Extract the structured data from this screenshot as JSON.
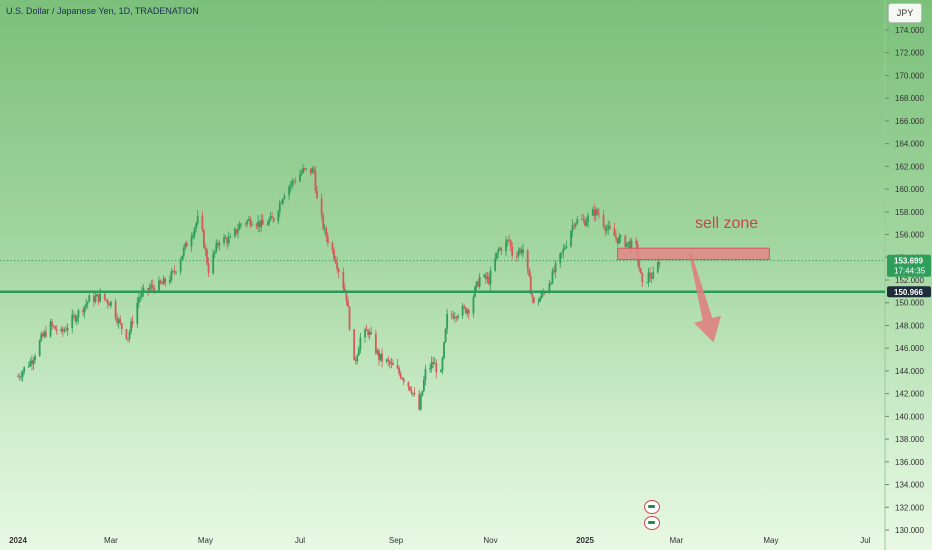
{
  "header": {
    "title": "U.S. Dollar / Japanese Yen, 1D, TRADENATION",
    "currency": "JPY"
  },
  "annotation": {
    "sell_zone_label": "sell zone"
  },
  "price_labels": {
    "current_price": "153.699",
    "countdown": "17:44:35",
    "support_price": "150.966"
  },
  "colors": {
    "up": "#2f9e5b",
    "down": "#d45a5a",
    "support_line": "#2a9a5c",
    "zone_fill": "#e38787",
    "zone_border": "#d45a5a",
    "arrow": "#e07b7b",
    "tag_green": "#2f9e5b",
    "tag_dark": "#1f2d3a"
  },
  "chart_data": {
    "type": "candlestick",
    "ylim": [
      130,
      174
    ],
    "y_ticks": [
      "174.000",
      "172.000",
      "170.000",
      "168.000",
      "166.000",
      "164.000",
      "162.000",
      "160.000",
      "158.000",
      "156.000",
      "154.000",
      "152.000",
      "150.000",
      "148.000",
      "146.000",
      "144.000",
      "142.000",
      "140.000",
      "138.000",
      "136.000",
      "134.000",
      "132.000",
      "130.000"
    ],
    "x_ticks": [
      "2024",
      "Mar",
      "May",
      "Jul",
      "Sep",
      "Nov",
      "2025",
      "Mar",
      "May",
      "Jul"
    ],
    "x_tick_dates": [
      "2024-01-01",
      "2024-03-01",
      "2024-05-01",
      "2024-07-01",
      "2024-09-01",
      "2024-11-01",
      "2025-01-01",
      "2025-03-01",
      "2025-05-01",
      "2025-07-01"
    ],
    "support_level": 150.966,
    "current_price": 153.699,
    "sell_zone": {
      "from": "2025-01-22",
      "to": "2025-04-30",
      "low": 153.8,
      "high": 154.8
    },
    "projection_arrow": {
      "start_date": "2025-03-10",
      "start_price": 154.3,
      "end_date": "2025-03-25",
      "end_price": 146.5
    },
    "price_path": [
      [
        "2024-01-01",
        143.5
      ],
      [
        "2024-01-05",
        144.2
      ],
      [
        "2024-01-10",
        145.0
      ],
      [
        "2024-01-16",
        146.8
      ],
      [
        "2024-01-22",
        148.0
      ],
      [
        "2024-01-29",
        147.3
      ],
      [
        "2024-02-05",
        148.5
      ],
      [
        "2024-02-12",
        149.6
      ],
      [
        "2024-02-16",
        150.3
      ],
      [
        "2024-02-23",
        150.5
      ],
      [
        "2024-03-01",
        150.0
      ],
      [
        "2024-03-07",
        148.0
      ],
      [
        "2024-03-12",
        147.0
      ],
      [
        "2024-03-19",
        150.5
      ],
      [
        "2024-03-26",
        151.3
      ],
      [
        "2024-04-03",
        151.6
      ],
      [
        "2024-04-10",
        152.5
      ],
      [
        "2024-04-17",
        154.6
      ],
      [
        "2024-04-26",
        157.3
      ],
      [
        "2024-04-29",
        156.0
      ],
      [
        "2024-05-03",
        152.9
      ],
      [
        "2024-05-10",
        155.6
      ],
      [
        "2024-05-17",
        155.5
      ],
      [
        "2024-05-24",
        157.0
      ],
      [
        "2024-05-31",
        157.3
      ],
      [
        "2024-06-07",
        156.8
      ],
      [
        "2024-06-14",
        157.4
      ],
      [
        "2024-06-21",
        159.8
      ],
      [
        "2024-06-28",
        160.9
      ],
      [
        "2024-07-03",
        161.6
      ],
      [
        "2024-07-10",
        161.6
      ],
      [
        "2024-07-12",
        159.0
      ],
      [
        "2024-07-17",
        156.2
      ],
      [
        "2024-07-24",
        153.9
      ],
      [
        "2024-07-31",
        150.5
      ],
      [
        "2024-08-05",
        144.5
      ],
      [
        "2024-08-09",
        146.9
      ],
      [
        "2024-08-14",
        147.5
      ],
      [
        "2024-08-21",
        145.2
      ],
      [
        "2024-08-28",
        144.6
      ],
      [
        "2024-09-04",
        143.7
      ],
      [
        "2024-09-11",
        142.4
      ],
      [
        "2024-09-16",
        140.6
      ],
      [
        "2024-09-20",
        143.9
      ],
      [
        "2024-09-25",
        144.7
      ],
      [
        "2024-09-30",
        143.6
      ],
      [
        "2024-10-04",
        148.7
      ],
      [
        "2024-10-11",
        149.2
      ],
      [
        "2024-10-18",
        149.5
      ],
      [
        "2024-10-25",
        152.2
      ],
      [
        "2024-10-31",
        152.0
      ],
      [
        "2024-11-06",
        154.6
      ],
      [
        "2024-11-13",
        155.5
      ],
      [
        "2024-11-15",
        154.3
      ],
      [
        "2024-11-22",
        154.7
      ],
      [
        "2024-11-29",
        149.8
      ],
      [
        "2024-12-04",
        150.6
      ],
      [
        "2024-12-11",
        152.4
      ],
      [
        "2024-12-18",
        154.6
      ],
      [
        "2024-12-25",
        157.2
      ],
      [
        "2025-01-01",
        157.2
      ],
      [
        "2025-01-07",
        158.0
      ],
      [
        "2025-01-10",
        157.8
      ],
      [
        "2025-01-15",
        156.5
      ],
      [
        "2025-01-22",
        155.6
      ],
      [
        "2025-01-29",
        155.2
      ],
      [
        "2025-02-03",
        154.8
      ],
      [
        "2025-02-07",
        151.4
      ],
      [
        "2025-02-11",
        152.4
      ],
      [
        "2025-02-14",
        152.3
      ],
      [
        "2025-02-18",
        153.7
      ]
    ]
  }
}
